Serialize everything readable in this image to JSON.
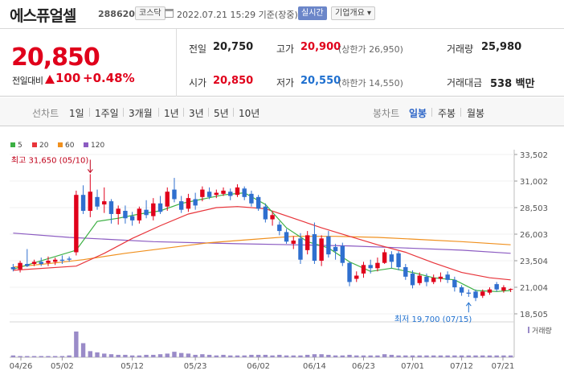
{
  "header": {
    "stock_name": "에스퓨얼셀",
    "stock_code": "288620",
    "market_badge": "코스닥",
    "date_text": "2022.07.21 15:29 기준(장중)",
    "live_badge": "실시간",
    "company_badge": "기업개요 ▾"
  },
  "summary": {
    "price": "20,850",
    "change_label": "전일대비",
    "change_value": "100",
    "change_pct": "+0.48%",
    "prev_close_label": "전일",
    "prev_close": "20,750",
    "high_label": "고가",
    "high": "20,900",
    "upper_limit": "(상한가 26,950)",
    "volume_label": "거래량",
    "volume": "25,980",
    "open_label": "시가",
    "open": "20,850",
    "low_label": "저가",
    "low": "20,550",
    "lower_limit": "(하한가 14,550)",
    "amount_label": "거래대금",
    "amount": "538 백만"
  },
  "tabs": {
    "line_chart": "선차트",
    "periods": [
      "1일",
      "1주일",
      "3개월",
      "1년",
      "3년",
      "5년",
      "10년"
    ],
    "candle_chart": "봉차트",
    "candle_periods": [
      "일봉",
      "주봉",
      "월봉"
    ]
  },
  "colors": {
    "up": "#e0001b",
    "down": "#2f6fcf",
    "ma5": "#3cb043",
    "ma20": "#e8343a",
    "ma60": "#f0901e",
    "ma120": "#8c5cc2",
    "volume": "#9a8bc8"
  },
  "chart_data": {
    "type": "candlestick",
    "legend": [
      "5",
      "20",
      "60",
      "120"
    ],
    "y_ticks": [
      "33,502",
      "31,002",
      "28,503",
      "26,003",
      "23,504",
      "21,004",
      "18,505"
    ],
    "y_range": [
      18505,
      33502
    ],
    "x_ticks": [
      "04/26",
      "05/02",
      "05/12",
      "05/23",
      "06/02",
      "06/14",
      "06/23",
      "07/01",
      "07/12",
      "07/21"
    ],
    "annotations": {
      "max": "최고 31,650 (05/10)",
      "min": "최저 19,700 (07/15)"
    },
    "volume_label": "거래량",
    "candles": [
      {
        "o": 22900,
        "c": 22700,
        "h": 23200,
        "l": 22500
      },
      {
        "o": 22700,
        "c": 23300,
        "h": 23500,
        "l": 22400
      },
      {
        "o": 23200,
        "c": 23000,
        "h": 24600,
        "l": 22900
      },
      {
        "o": 23200,
        "c": 23400,
        "h": 23600,
        "l": 23000
      },
      {
        "o": 23400,
        "c": 23200,
        "h": 23800,
        "l": 23000
      },
      {
        "o": 23300,
        "c": 23500,
        "h": 23900,
        "l": 23000
      },
      {
        "o": 23400,
        "c": 23600,
        "h": 23800,
        "l": 23100
      },
      {
        "o": 23600,
        "c": 23500,
        "h": 24000,
        "l": 23200
      },
      {
        "o": 23700,
        "c": 23600,
        "h": 23900,
        "l": 23400
      },
      {
        "o": 24300,
        "c": 29700,
        "h": 30100,
        "l": 24000
      },
      {
        "o": 29700,
        "c": 28200,
        "h": 30600,
        "l": 27900
      },
      {
        "o": 28200,
        "c": 30000,
        "h": 31650,
        "l": 27600
      },
      {
        "o": 29500,
        "c": 28600,
        "h": 30200,
        "l": 28300
      },
      {
        "o": 28800,
        "c": 29100,
        "h": 30400,
        "l": 28000
      },
      {
        "o": 29100,
        "c": 27900,
        "h": 29300,
        "l": 27000
      },
      {
        "o": 27900,
        "c": 28400,
        "h": 28700,
        "l": 26900
      },
      {
        "o": 28200,
        "c": 27500,
        "h": 28700,
        "l": 27000
      },
      {
        "o": 27700,
        "c": 27300,
        "h": 28100,
        "l": 26800
      },
      {
        "o": 27300,
        "c": 28400,
        "h": 28600,
        "l": 27000
      },
      {
        "o": 28300,
        "c": 27800,
        "h": 29200,
        "l": 27500
      },
      {
        "o": 27700,
        "c": 28900,
        "h": 29400,
        "l": 27300
      },
      {
        "o": 28900,
        "c": 28100,
        "h": 29600,
        "l": 27900
      },
      {
        "o": 28600,
        "c": 30000,
        "h": 30400,
        "l": 28200
      },
      {
        "o": 30200,
        "c": 29300,
        "h": 31300,
        "l": 29000
      },
      {
        "o": 29100,
        "c": 28300,
        "h": 29600,
        "l": 28000
      },
      {
        "o": 28400,
        "c": 29400,
        "h": 29800,
        "l": 28100
      },
      {
        "o": 29300,
        "c": 28700,
        "h": 29900,
        "l": 28300
      },
      {
        "o": 29500,
        "c": 30200,
        "h": 30500,
        "l": 29100
      },
      {
        "o": 30000,
        "c": 29500,
        "h": 30400,
        "l": 29300
      },
      {
        "o": 29700,
        "c": 29900,
        "h": 30200,
        "l": 29400
      },
      {
        "o": 29800,
        "c": 30100,
        "h": 30400,
        "l": 29600
      },
      {
        "o": 30000,
        "c": 29600,
        "h": 30300,
        "l": 29200
      },
      {
        "o": 29700,
        "c": 30400,
        "h": 30700,
        "l": 29500
      },
      {
        "o": 30300,
        "c": 29500,
        "h": 30500,
        "l": 29200
      },
      {
        "o": 29800,
        "c": 28900,
        "h": 30100,
        "l": 28600
      },
      {
        "o": 29500,
        "c": 28400,
        "h": 29700,
        "l": 28200
      },
      {
        "o": 28600,
        "c": 27400,
        "h": 28900,
        "l": 27100
      },
      {
        "o": 27400,
        "c": 27800,
        "h": 28100,
        "l": 26800
      },
      {
        "o": 26900,
        "c": 26300,
        "h": 27200,
        "l": 25900
      },
      {
        "o": 26200,
        "c": 25300,
        "h": 26500,
        "l": 25100
      },
      {
        "o": 25100,
        "c": 25400,
        "h": 25800,
        "l": 24600
      },
      {
        "o": 25600,
        "c": 23600,
        "h": 26100,
        "l": 23200
      },
      {
        "o": 24500,
        "c": 25900,
        "h": 26300,
        "l": 24100
      },
      {
        "o": 26000,
        "c": 23500,
        "h": 27100,
        "l": 23200
      },
      {
        "o": 23500,
        "c": 25600,
        "h": 25900,
        "l": 23000
      },
      {
        "o": 25800,
        "c": 24100,
        "h": 26300,
        "l": 23800
      },
      {
        "o": 24800,
        "c": 24400,
        "h": 25100,
        "l": 23600
      },
      {
        "o": 24900,
        "c": 23300,
        "h": 25200,
        "l": 23000
      },
      {
        "o": 23300,
        "c": 21500,
        "h": 23400,
        "l": 21100
      },
      {
        "o": 21800,
        "c": 22100,
        "h": 22500,
        "l": 21500
      },
      {
        "o": 22300,
        "c": 23100,
        "h": 23400,
        "l": 21900
      },
      {
        "o": 23100,
        "c": 22800,
        "h": 23600,
        "l": 22300
      },
      {
        "o": 22800,
        "c": 23300,
        "h": 23800,
        "l": 22500
      },
      {
        "o": 23300,
        "c": 24300,
        "h": 24600,
        "l": 23200
      },
      {
        "o": 24100,
        "c": 23400,
        "h": 24400,
        "l": 22800
      },
      {
        "o": 24200,
        "c": 22900,
        "h": 24400,
        "l": 22600
      },
      {
        "o": 22900,
        "c": 22000,
        "h": 23200,
        "l": 21700
      },
      {
        "o": 22300,
        "c": 21200,
        "h": 22600,
        "l": 20900
      },
      {
        "o": 21400,
        "c": 22100,
        "h": 22400,
        "l": 21200
      },
      {
        "o": 22000,
        "c": 21500,
        "h": 22300,
        "l": 21100
      },
      {
        "o": 21500,
        "c": 21900,
        "h": 22200,
        "l": 21300
      },
      {
        "o": 21800,
        "c": 22000,
        "h": 22400,
        "l": 21500
      },
      {
        "o": 22200,
        "c": 21700,
        "h": 22500,
        "l": 21400
      },
      {
        "o": 21700,
        "c": 21000,
        "h": 22000,
        "l": 20600
      },
      {
        "o": 21000,
        "c": 20500,
        "h": 21200,
        "l": 20200
      },
      {
        "o": 20500,
        "c": 20400,
        "h": 20800,
        "l": 20100
      },
      {
        "o": 20600,
        "c": 20000,
        "h": 20800,
        "l": 19700
      },
      {
        "o": 20200,
        "c": 20600,
        "h": 20800,
        "l": 20000
      },
      {
        "o": 20500,
        "c": 20800,
        "h": 21000,
        "l": 20300
      },
      {
        "o": 21300,
        "c": 20800,
        "h": 21500,
        "l": 20600
      },
      {
        "o": 20700,
        "c": 21000,
        "h": 21200,
        "l": 20500
      },
      {
        "o": 20850,
        "c": 20850,
        "h": 20900,
        "l": 20550
      }
    ],
    "volumes": [
      3,
      2,
      2,
      2,
      2,
      2,
      2,
      2,
      3,
      42,
      23,
      10,
      8,
      6,
      5,
      4,
      4,
      3,
      3,
      4,
      4,
      5,
      6,
      9,
      7,
      6,
      4,
      5,
      4,
      3,
      4,
      3,
      3,
      3,
      4,
      4,
      4,
      3,
      4,
      3,
      3,
      3,
      4,
      5,
      5,
      4,
      3,
      3,
      4,
      3,
      3,
      3,
      3,
      5,
      4,
      3,
      3,
      3,
      3,
      3,
      3,
      3,
      3,
      3,
      3,
      3,
      3,
      3,
      3,
      3,
      3,
      3
    ],
    "ma5": [
      [
        0,
        22700
      ],
      [
        9,
        24500
      ],
      [
        12,
        27200
      ],
      [
        15,
        27500
      ],
      [
        18,
        27900
      ],
      [
        21,
        28200
      ],
      [
        24,
        28900
      ],
      [
        27,
        29300
      ],
      [
        30,
        29700
      ],
      [
        33,
        29900
      ],
      [
        36,
        28800
      ],
      [
        39,
        26600
      ],
      [
        42,
        25300
      ],
      [
        45,
        24700
      ],
      [
        48,
        23400
      ],
      [
        51,
        22500
      ],
      [
        54,
        22800
      ],
      [
        57,
        22400
      ],
      [
        60,
        21900
      ],
      [
        63,
        21700
      ],
      [
        66,
        20700
      ],
      [
        69,
        20600
      ],
      [
        71,
        20700
      ]
    ],
    "ma20": [
      [
        0,
        22600
      ],
      [
        9,
        23000
      ],
      [
        13,
        24200
      ],
      [
        17,
        25600
      ],
      [
        21,
        26800
      ],
      [
        25,
        27900
      ],
      [
        29,
        28500
      ],
      [
        32,
        28600
      ],
      [
        36,
        28400
      ],
      [
        40,
        27500
      ],
      [
        44,
        26600
      ],
      [
        48,
        25800
      ],
      [
        52,
        25000
      ],
      [
        56,
        24300
      ],
      [
        60,
        23300
      ],
      [
        64,
        22400
      ],
      [
        68,
        21900
      ],
      [
        71,
        21700
      ]
    ],
    "ma60": [
      [
        0,
        22900
      ],
      [
        6,
        23300
      ],
      [
        10,
        23600
      ],
      [
        16,
        24200
      ],
      [
        22,
        24700
      ],
      [
        28,
        25200
      ],
      [
        34,
        25500
      ],
      [
        40,
        25800
      ],
      [
        46,
        25800
      ],
      [
        52,
        25700
      ],
      [
        58,
        25500
      ],
      [
        64,
        25300
      ],
      [
        71,
        25000
      ]
    ],
    "ma120": [
      [
        0,
        26100
      ],
      [
        8,
        25700
      ],
      [
        14,
        25500
      ],
      [
        20,
        25300
      ],
      [
        26,
        25200
      ],
      [
        32,
        25100
      ],
      [
        40,
        25000
      ],
      [
        48,
        24900
      ],
      [
        56,
        24700
      ],
      [
        64,
        24500
      ],
      [
        71,
        24200
      ]
    ]
  }
}
